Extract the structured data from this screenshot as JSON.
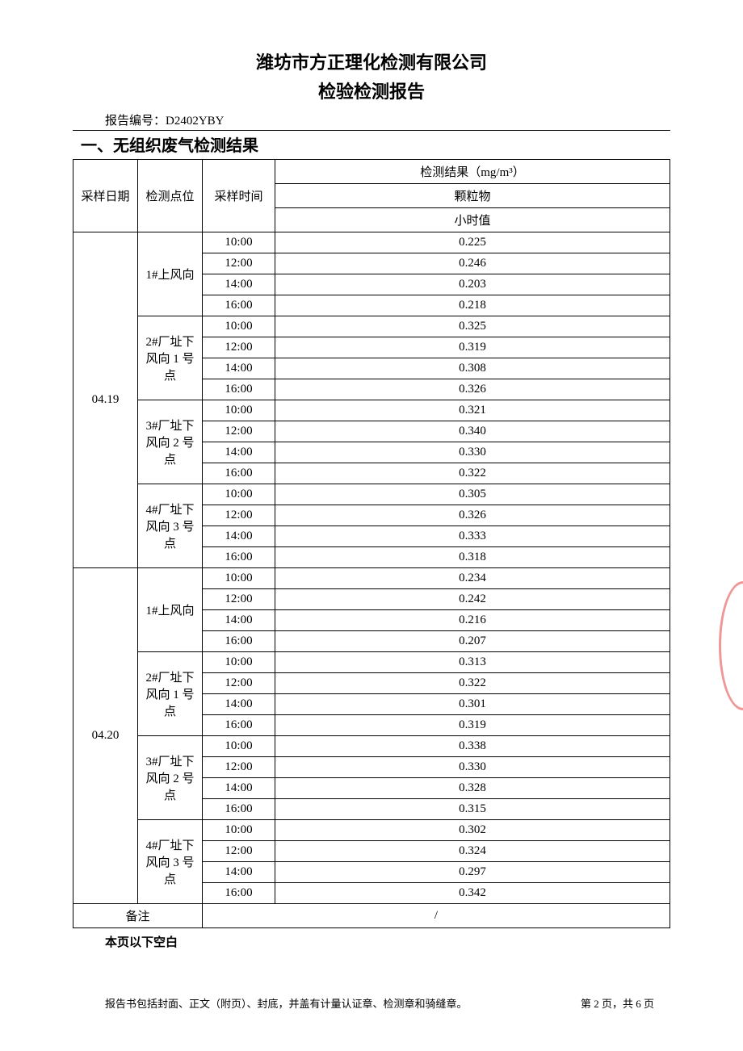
{
  "header": {
    "company": "潍坊市方正理化检测有限公司",
    "report_type": "检验检测报告",
    "report_number_label": "报告编号：",
    "report_number": "D2402YBY"
  },
  "section": {
    "title": "一、无组织废气检测结果"
  },
  "table": {
    "headers": {
      "date": "采样日期",
      "point": "检测点位",
      "time": "采样时间",
      "result_unit": "检测结果（mg/m³）",
      "result_type": "颗粒物",
      "result_value": "小时值"
    },
    "groups": [
      {
        "date": "04.19",
        "points": [
          {
            "name": "1#上风向",
            "readings": [
              {
                "time": "10:00",
                "value": "0.225"
              },
              {
                "time": "12:00",
                "value": "0.246"
              },
              {
                "time": "14:00",
                "value": "0.203"
              },
              {
                "time": "16:00",
                "value": "0.218"
              }
            ]
          },
          {
            "name": "2#厂址下风向 1 号点",
            "readings": [
              {
                "time": "10:00",
                "value": "0.325"
              },
              {
                "time": "12:00",
                "value": "0.319"
              },
              {
                "time": "14:00",
                "value": "0.308"
              },
              {
                "time": "16:00",
                "value": "0.326"
              }
            ]
          },
          {
            "name": "3#厂址下风向 2 号点",
            "readings": [
              {
                "time": "10:00",
                "value": "0.321"
              },
              {
                "time": "12:00",
                "value": "0.340"
              },
              {
                "time": "14:00",
                "value": "0.330"
              },
              {
                "time": "16:00",
                "value": "0.322"
              }
            ]
          },
          {
            "name": "4#厂址下风向 3 号点",
            "readings": [
              {
                "time": "10:00",
                "value": "0.305"
              },
              {
                "time": "12:00",
                "value": "0.326"
              },
              {
                "time": "14:00",
                "value": "0.333"
              },
              {
                "time": "16:00",
                "value": "0.318"
              }
            ]
          }
        ]
      },
      {
        "date": "04.20",
        "points": [
          {
            "name": "1#上风向",
            "readings": [
              {
                "time": "10:00",
                "value": "0.234"
              },
              {
                "time": "12:00",
                "value": "0.242"
              },
              {
                "time": "14:00",
                "value": "0.216"
              },
              {
                "time": "16:00",
                "value": "0.207"
              }
            ]
          },
          {
            "name": "2#厂址下风向 1 号点",
            "readings": [
              {
                "time": "10:00",
                "value": "0.313"
              },
              {
                "time": "12:00",
                "value": "0.322"
              },
              {
                "time": "14:00",
                "value": "0.301"
              },
              {
                "time": "16:00",
                "value": "0.319"
              }
            ]
          },
          {
            "name": "3#厂址下风向 2 号点",
            "readings": [
              {
                "time": "10:00",
                "value": "0.338"
              },
              {
                "time": "12:00",
                "value": "0.330"
              },
              {
                "time": "14:00",
                "value": "0.328"
              },
              {
                "time": "16:00",
                "value": "0.315"
              }
            ]
          },
          {
            "name": "4#厂址下风向 3 号点",
            "readings": [
              {
                "time": "10:00",
                "value": "0.302"
              },
              {
                "time": "12:00",
                "value": "0.324"
              },
              {
                "time": "14:00",
                "value": "0.297"
              },
              {
                "time": "16:00",
                "value": "0.342"
              }
            ]
          }
        ]
      }
    ],
    "remark_label": "备注",
    "remark_value": "/"
  },
  "blank_note": "本页以下空白",
  "footer": {
    "left": "报告书包括封面、正文（附页）、封底，并盖有计量认证章、检测章和骑缝章。",
    "right": "第 2 页，共 6 页"
  },
  "styling": {
    "page_bg": "#ffffff",
    "text_color": "#000000",
    "border_color": "#000000",
    "stamp_color": "#e03030",
    "title_fontsize": 22,
    "body_fontsize": 15,
    "footer_fontsize": 13
  }
}
